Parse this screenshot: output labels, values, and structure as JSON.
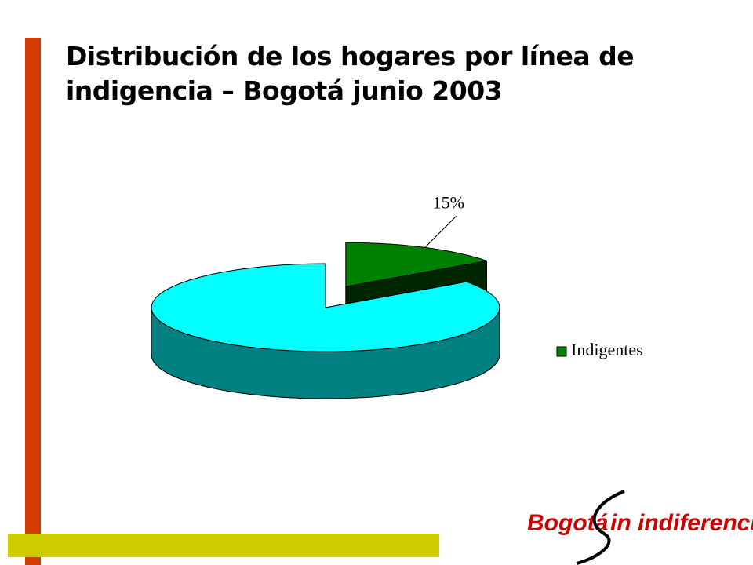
{
  "chart_data": {
    "type": "pie3d",
    "title": "Distribución de los hogares por línea de indigencia – Bogotá junio 2003",
    "categories": [
      "Indigentes",
      null
    ],
    "values": [
      15,
      85
    ],
    "value_labels": [
      "15%",
      null
    ],
    "colors": [
      "#008000",
      "#00FFFF"
    ],
    "legend": "right"
  },
  "logo": {
    "word1": "Bogotá",
    "word2": "in indiferencia"
  }
}
